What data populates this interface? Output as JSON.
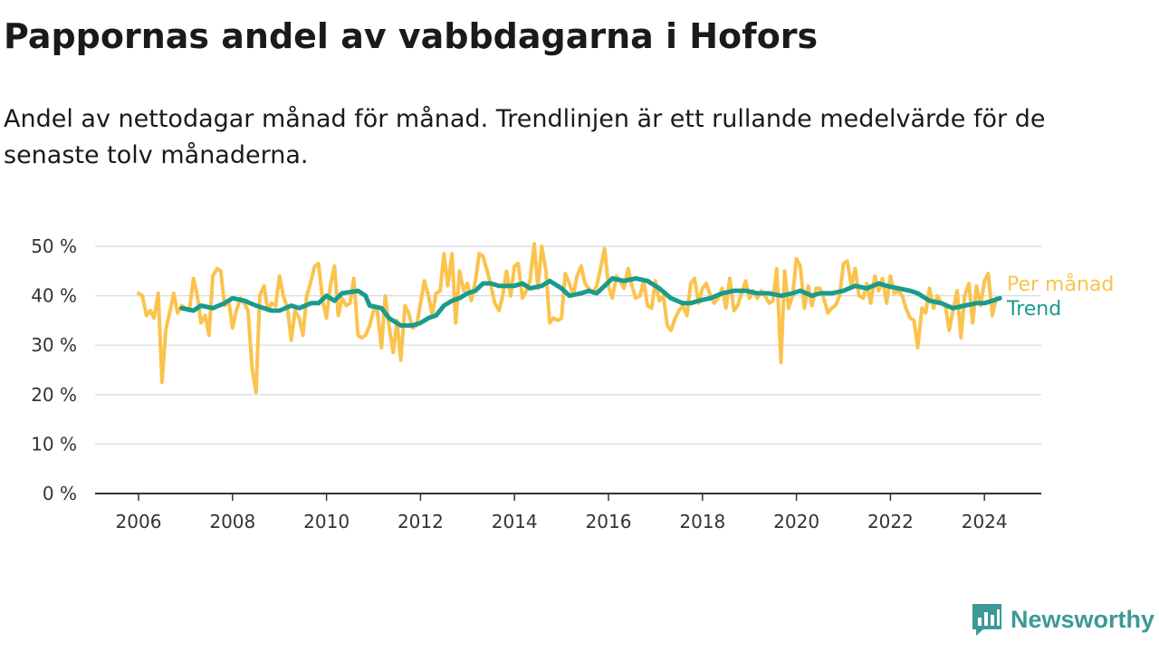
{
  "title": "Pappornas andel av vabbdagarna i Hofors",
  "subtitle": "Andel av nettodagar månad för månad. Trendlinjen är ett rullande medelvärde för de senaste tolv månaderna.",
  "brand": {
    "name": "Newsworthy",
    "color": "#3c9a96"
  },
  "chart_data": {
    "type": "line",
    "title": "Pappornas andel av vabbdagarna i Hofors",
    "ylim": [
      0,
      50
    ],
    "xlim": [
      2006,
      2024.5
    ],
    "y_ticks": [
      "0 %",
      "10 %",
      "20 %",
      "30 %",
      "40 %",
      "50 %"
    ],
    "x_ticks": [
      "2006",
      "2008",
      "2010",
      "2012",
      "2014",
      "2016",
      "2018",
      "2020",
      "2022",
      "2024"
    ],
    "grid": true,
    "legend": "end-of-line labels, right",
    "series": [
      {
        "name": "Per månad",
        "color": "#fbc34d",
        "points": [
          [
            2006.0,
            40.5
          ],
          [
            2006.08,
            40
          ],
          [
            2006.17,
            36
          ],
          [
            2006.25,
            37
          ],
          [
            2006.33,
            35.5
          ],
          [
            2006.42,
            40.5
          ],
          [
            2006.5,
            22.5
          ],
          [
            2006.58,
            33
          ],
          [
            2006.67,
            37
          ],
          [
            2006.75,
            40.5
          ],
          [
            2006.83,
            36.5
          ],
          [
            2006.92,
            38
          ],
          [
            2007.0,
            37.5
          ],
          [
            2007.08,
            37
          ],
          [
            2007.17,
            43.5
          ],
          [
            2007.25,
            40
          ],
          [
            2007.33,
            34.5
          ],
          [
            2007.42,
            36
          ],
          [
            2007.5,
            32
          ],
          [
            2007.58,
            44
          ],
          [
            2007.67,
            45.5
          ],
          [
            2007.75,
            45
          ],
          [
            2007.83,
            38
          ],
          [
            2007.92,
            39
          ],
          [
            2008.0,
            33.5
          ],
          [
            2008.08,
            37
          ],
          [
            2008.17,
            39.5
          ],
          [
            2008.25,
            38.5
          ],
          [
            2008.33,
            37
          ],
          [
            2008.42,
            25
          ],
          [
            2008.5,
            20.5
          ],
          [
            2008.58,
            40
          ],
          [
            2008.67,
            42
          ],
          [
            2008.75,
            37
          ],
          [
            2008.83,
            38.5
          ],
          [
            2008.92,
            38
          ],
          [
            2009.0,
            44
          ],
          [
            2009.08,
            40
          ],
          [
            2009.17,
            37.5
          ],
          [
            2009.25,
            31
          ],
          [
            2009.33,
            37
          ],
          [
            2009.42,
            35.5
          ],
          [
            2009.5,
            32
          ],
          [
            2009.58,
            40
          ],
          [
            2009.67,
            43
          ],
          [
            2009.75,
            46
          ],
          [
            2009.83,
            46.5
          ],
          [
            2009.92,
            39
          ],
          [
            2010.0,
            35.5
          ],
          [
            2010.08,
            42
          ],
          [
            2010.17,
            46
          ],
          [
            2010.25,
            36
          ],
          [
            2010.33,
            39.5
          ],
          [
            2010.42,
            38
          ],
          [
            2010.5,
            38.5
          ],
          [
            2010.58,
            43.5
          ],
          [
            2010.67,
            32
          ],
          [
            2010.75,
            31.5
          ],
          [
            2010.83,
            32
          ],
          [
            2010.92,
            34
          ],
          [
            2011.0,
            37
          ],
          [
            2011.08,
            37
          ],
          [
            2011.17,
            29.5
          ],
          [
            2011.25,
            40
          ],
          [
            2011.33,
            34
          ],
          [
            2011.42,
            28.5
          ],
          [
            2011.5,
            35
          ],
          [
            2011.58,
            27
          ],
          [
            2011.67,
            38
          ],
          [
            2011.75,
            36.5
          ],
          [
            2011.83,
            33.5
          ],
          [
            2011.92,
            34
          ],
          [
            2012.0,
            38.5
          ],
          [
            2012.08,
            43
          ],
          [
            2012.17,
            40
          ],
          [
            2012.25,
            36
          ],
          [
            2012.33,
            40.5
          ],
          [
            2012.42,
            41
          ],
          [
            2012.5,
            48.5
          ],
          [
            2012.58,
            42
          ],
          [
            2012.67,
            48.5
          ],
          [
            2012.75,
            34.5
          ],
          [
            2012.83,
            45
          ],
          [
            2012.92,
            41
          ],
          [
            2013.0,
            42.5
          ],
          [
            2013.08,
            39
          ],
          [
            2013.17,
            43
          ],
          [
            2013.25,
            48.5
          ],
          [
            2013.33,
            48
          ],
          [
            2013.42,
            45
          ],
          [
            2013.5,
            42
          ],
          [
            2013.58,
            38.5
          ],
          [
            2013.67,
            37
          ],
          [
            2013.75,
            40
          ],
          [
            2013.83,
            45
          ],
          [
            2013.92,
            40
          ],
          [
            2014.0,
            46
          ],
          [
            2014.08,
            46.5
          ],
          [
            2014.17,
            39.5
          ],
          [
            2014.25,
            41
          ],
          [
            2014.33,
            43
          ],
          [
            2014.42,
            50.5
          ],
          [
            2014.5,
            41.5
          ],
          [
            2014.58,
            50
          ],
          [
            2014.67,
            45
          ],
          [
            2014.75,
            34.5
          ],
          [
            2014.83,
            35.5
          ],
          [
            2014.92,
            35
          ],
          [
            2015.0,
            35.5
          ],
          [
            2015.08,
            44.5
          ],
          [
            2015.17,
            42.5
          ],
          [
            2015.25,
            40
          ],
          [
            2015.33,
            44
          ],
          [
            2015.42,
            46
          ],
          [
            2015.5,
            42.5
          ],
          [
            2015.58,
            41.5
          ],
          [
            2015.67,
            40.5
          ],
          [
            2015.75,
            42
          ],
          [
            2015.83,
            45.5
          ],
          [
            2015.92,
            49.5
          ],
          [
            2016.0,
            42
          ],
          [
            2016.08,
            39.5
          ],
          [
            2016.17,
            44
          ],
          [
            2016.25,
            43
          ],
          [
            2016.33,
            41.5
          ],
          [
            2016.42,
            45.5
          ],
          [
            2016.5,
            42
          ],
          [
            2016.58,
            39.5
          ],
          [
            2016.67,
            40
          ],
          [
            2016.75,
            43
          ],
          [
            2016.83,
            38
          ],
          [
            2016.92,
            37.5
          ],
          [
            2017.0,
            43
          ],
          [
            2017.08,
            39
          ],
          [
            2017.17,
            40
          ],
          [
            2017.25,
            34
          ],
          [
            2017.33,
            33
          ],
          [
            2017.42,
            35.5
          ],
          [
            2017.5,
            37
          ],
          [
            2017.58,
            38
          ],
          [
            2017.67,
            36
          ],
          [
            2017.75,
            42.5
          ],
          [
            2017.83,
            43.5
          ],
          [
            2017.92,
            38.5
          ],
          [
            2018.0,
            41.5
          ],
          [
            2018.08,
            42.5
          ],
          [
            2018.17,
            40
          ],
          [
            2018.25,
            38.5
          ],
          [
            2018.33,
            39.5
          ],
          [
            2018.42,
            41.5
          ],
          [
            2018.5,
            37.5
          ],
          [
            2018.58,
            43.5
          ],
          [
            2018.67,
            37
          ],
          [
            2018.75,
            38
          ],
          [
            2018.83,
            40.5
          ],
          [
            2018.92,
            43
          ],
          [
            2019.0,
            39.5
          ],
          [
            2019.08,
            41
          ],
          [
            2019.17,
            39.5
          ],
          [
            2019.25,
            41
          ],
          [
            2019.33,
            40
          ],
          [
            2019.42,
            38.5
          ],
          [
            2019.5,
            39
          ],
          [
            2019.58,
            45.5
          ],
          [
            2019.67,
            26.5
          ],
          [
            2019.75,
            45
          ],
          [
            2019.83,
            37.5
          ],
          [
            2019.92,
            40
          ],
          [
            2020.0,
            47.5
          ],
          [
            2020.08,
            46
          ],
          [
            2020.17,
            37.5
          ],
          [
            2020.25,
            42
          ],
          [
            2020.33,
            38
          ],
          [
            2020.42,
            41.5
          ],
          [
            2020.5,
            41.5
          ],
          [
            2020.58,
            39.5
          ],
          [
            2020.67,
            36.5
          ],
          [
            2020.75,
            37.5
          ],
          [
            2020.83,
            38
          ],
          [
            2020.92,
            40
          ],
          [
            2021.0,
            46.5
          ],
          [
            2021.08,
            47
          ],
          [
            2021.17,
            42
          ],
          [
            2021.25,
            45.5
          ],
          [
            2021.33,
            40
          ],
          [
            2021.42,
            39.5
          ],
          [
            2021.5,
            42.5
          ],
          [
            2021.58,
            38.5
          ],
          [
            2021.67,
            44
          ],
          [
            2021.75,
            41
          ],
          [
            2021.83,
            43.5
          ],
          [
            2021.92,
            38.5
          ],
          [
            2022.0,
            44
          ],
          [
            2022.08,
            40.5
          ],
          [
            2022.17,
            41
          ],
          [
            2022.25,
            40
          ],
          [
            2022.33,
            37.5
          ],
          [
            2022.42,
            35.5
          ],
          [
            2022.5,
            35
          ],
          [
            2022.58,
            29.5
          ],
          [
            2022.67,
            37.5
          ],
          [
            2022.75,
            36.5
          ],
          [
            2022.83,
            41.5
          ],
          [
            2022.92,
            37.5
          ],
          [
            2023.0,
            40
          ],
          [
            2023.08,
            38.5
          ],
          [
            2023.17,
            38
          ],
          [
            2023.25,
            33
          ],
          [
            2023.33,
            37
          ],
          [
            2023.42,
            41
          ],
          [
            2023.5,
            31.5
          ],
          [
            2023.58,
            40
          ],
          [
            2023.67,
            42.5
          ],
          [
            2023.75,
            34.5
          ],
          [
            2023.83,
            42
          ],
          [
            2023.92,
            38
          ],
          [
            2024.0,
            43
          ],
          [
            2024.08,
            44.5
          ],
          [
            2024.17,
            36
          ],
          [
            2024.25,
            39.5
          ]
        ]
      },
      {
        "name": "Trend",
        "color": "#1a9b8c",
        "points": [
          [
            2006.92,
            37.5
          ],
          [
            2007.17,
            37
          ],
          [
            2007.33,
            38
          ],
          [
            2007.58,
            37.5
          ],
          [
            2007.83,
            38.5
          ],
          [
            2008.0,
            39.5
          ],
          [
            2008.25,
            39
          ],
          [
            2008.5,
            38
          ],
          [
            2008.83,
            37
          ],
          [
            2009.0,
            37
          ],
          [
            2009.25,
            38
          ],
          [
            2009.42,
            37.5
          ],
          [
            2009.67,
            38.5
          ],
          [
            2009.83,
            38.5
          ],
          [
            2010.0,
            40
          ],
          [
            2010.17,
            39
          ],
          [
            2010.33,
            40.5
          ],
          [
            2010.67,
            41
          ],
          [
            2010.83,
            40
          ],
          [
            2010.92,
            38
          ],
          [
            2011.17,
            37.5
          ],
          [
            2011.33,
            35.5
          ],
          [
            2011.58,
            34
          ],
          [
            2011.83,
            34
          ],
          [
            2012.0,
            34.5
          ],
          [
            2012.17,
            35.5
          ],
          [
            2012.33,
            36
          ],
          [
            2012.5,
            38
          ],
          [
            2012.67,
            39
          ],
          [
            2012.83,
            39.5
          ],
          [
            2013.0,
            40.5
          ],
          [
            2013.17,
            41
          ],
          [
            2013.33,
            42.5
          ],
          [
            2013.5,
            42.5
          ],
          [
            2013.67,
            42
          ],
          [
            2013.83,
            42
          ],
          [
            2014.0,
            42
          ],
          [
            2014.17,
            42.5
          ],
          [
            2014.33,
            41.5
          ],
          [
            2014.58,
            42
          ],
          [
            2014.75,
            43
          ],
          [
            2015.0,
            41.5
          ],
          [
            2015.17,
            40
          ],
          [
            2015.42,
            40.5
          ],
          [
            2015.58,
            41
          ],
          [
            2015.75,
            40.5
          ],
          [
            2015.92,
            42
          ],
          [
            2016.08,
            43.5
          ],
          [
            2016.33,
            43
          ],
          [
            2016.58,
            43.5
          ],
          [
            2016.83,
            43
          ],
          [
            2017.08,
            41.5
          ],
          [
            2017.33,
            39.5
          ],
          [
            2017.58,
            38.5
          ],
          [
            2017.75,
            38.5
          ],
          [
            2017.92,
            39
          ],
          [
            2018.17,
            39.5
          ],
          [
            2018.42,
            40.5
          ],
          [
            2018.67,
            41
          ],
          [
            2018.92,
            41
          ],
          [
            2019.17,
            40.5
          ],
          [
            2019.42,
            40.5
          ],
          [
            2019.67,
            40
          ],
          [
            2019.92,
            40.5
          ],
          [
            2020.08,
            41
          ],
          [
            2020.33,
            40
          ],
          [
            2020.5,
            40.5
          ],
          [
            2020.75,
            40.5
          ],
          [
            2021.0,
            41
          ],
          [
            2021.25,
            42
          ],
          [
            2021.5,
            41.5
          ],
          [
            2021.75,
            42.5
          ],
          [
            2021.92,
            42
          ],
          [
            2022.17,
            41.5
          ],
          [
            2022.42,
            41
          ],
          [
            2022.58,
            40.5
          ],
          [
            2022.83,
            39
          ],
          [
            2023.08,
            38.5
          ],
          [
            2023.33,
            37.5
          ],
          [
            2023.58,
            38
          ],
          [
            2023.83,
            38.5
          ],
          [
            2024.0,
            38.5
          ],
          [
            2024.17,
            39
          ],
          [
            2024.33,
            39.5
          ]
        ]
      }
    ]
  }
}
